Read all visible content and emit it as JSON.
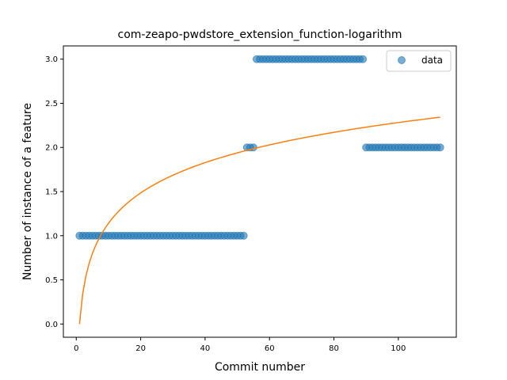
{
  "chart_data": {
    "type": "scatter",
    "title": "com-zeapo-pwdstore_extension_function-logarithm",
    "xlabel": "Commit number",
    "ylabel": "Number of instance of a feature",
    "xlim": [
      -4,
      118
    ],
    "ylim": [
      -0.15,
      3.15
    ],
    "xticks": [
      0,
      20,
      40,
      60,
      80,
      100
    ],
    "yticks": [
      0.0,
      0.5,
      1.0,
      1.5,
      2.0,
      2.5,
      3.0
    ],
    "xtick_labels": [
      "0",
      "20",
      "40",
      "60",
      "80",
      "100"
    ],
    "ytick_labels": [
      "0.0",
      "0.5",
      "1.0",
      "1.5",
      "2.0",
      "2.5",
      "3.0"
    ],
    "grid": false,
    "legend": {
      "position": "top-right",
      "entries": [
        "data"
      ]
    },
    "series": [
      {
        "name": "data",
        "kind": "scatter",
        "color": "#1f77b4",
        "segments": [
          {
            "x_start": 1,
            "x_end": 52,
            "y": 1
          },
          {
            "x_start": 53,
            "x_end": 55,
            "y": 2
          },
          {
            "x_start": 56,
            "x_end": 89,
            "y": 3
          },
          {
            "x_start": 90,
            "x_end": 113,
            "y": 2
          }
        ]
      },
      {
        "kind": "line",
        "color": "#ff7f0e",
        "formula": "y = a*ln(x) + b",
        "a": 0.4955,
        "b": 0.0,
        "x_range": [
          1,
          113
        ]
      }
    ]
  }
}
